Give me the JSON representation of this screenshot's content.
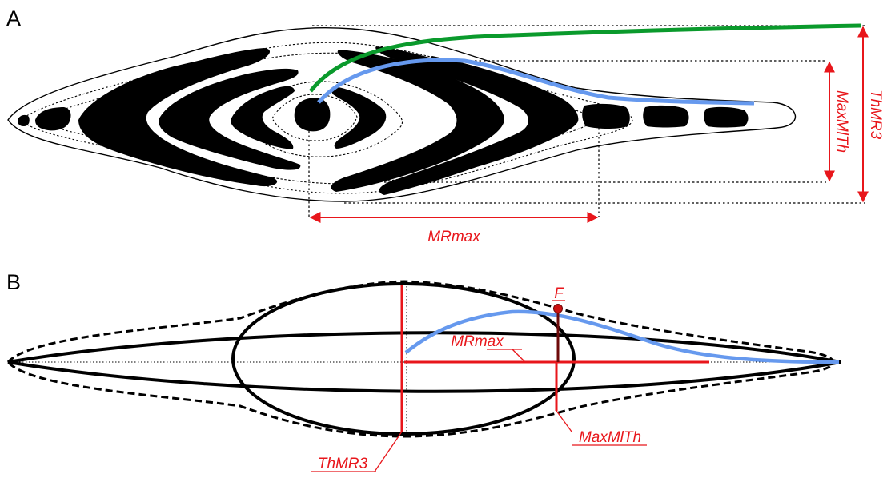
{
  "panel_a": {
    "letter": "A",
    "labels": {
      "mr_max": "MRmax",
      "max_mlth": "MaxMlTh",
      "thmr3": "ThMR3"
    }
  },
  "panel_b": {
    "letter": "B",
    "labels": {
      "f_point": "F",
      "mr_max": "MRmax",
      "max_mlth": "MaxMlTh",
      "thmr3": "ThMR3"
    }
  },
  "colors": {
    "black": "#000000",
    "red": "#e8161b",
    "dark_red": "#6e0a0a",
    "blue": "#6699ee",
    "green": "#0a9a2c"
  }
}
